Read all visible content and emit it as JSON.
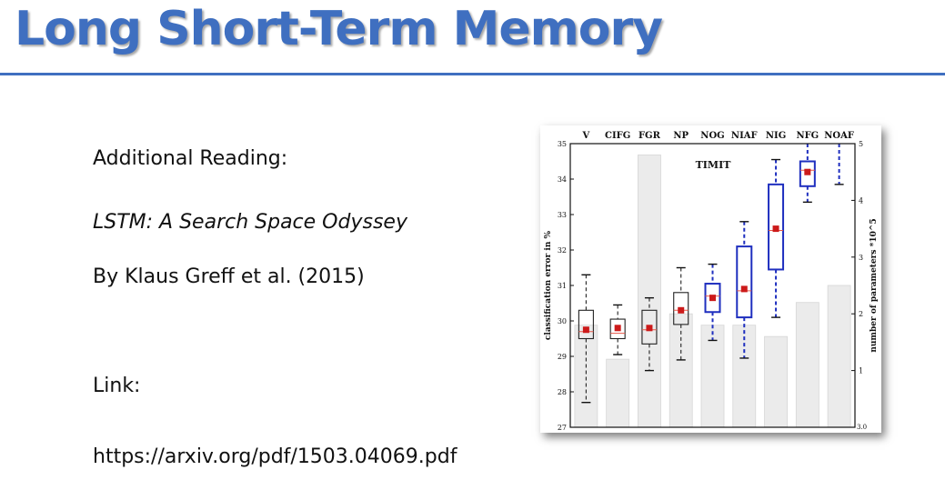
{
  "slide": {
    "title": "Long Short-Term Memory",
    "heading": "Additional Reading:",
    "paper_title": "LSTM: A Search Space Odyssey",
    "authors": "By Klaus Greff et al. (2015)",
    "link_label": "Link:",
    "url": "https://arxiv.org/pdf/1503.04069.pdf",
    "accent_color": "#3f6fc0"
  },
  "chart_data": {
    "type": "box",
    "title": "TIMIT",
    "ylabel": "classification error in %",
    "y2label": "number of parameters *10^5",
    "ylim": [
      27,
      35
    ],
    "y2lim": [
      0,
      5
    ],
    "yticks": [
      "27",
      "28",
      "29",
      "30",
      "31",
      "32",
      "33",
      "34",
      "35"
    ],
    "y2ticks": [
      "1",
      "2",
      "3",
      "4",
      "5"
    ],
    "y2_bottom_tick": "3.0",
    "categories": [
      "V",
      "CIFG",
      "FGR",
      "NP",
      "NOG",
      "NIAF",
      "NIG",
      "NFG",
      "NOAF"
    ],
    "boxes": [
      {
        "q1": 29.5,
        "median": 29.7,
        "q3": 30.3,
        "low": 27.7,
        "high": 31.3,
        "mean": 29.75,
        "highlight": false
      },
      {
        "q1": 29.5,
        "median": 29.65,
        "q3": 30.05,
        "low": 29.05,
        "high": 30.45,
        "mean": 29.8,
        "highlight": false
      },
      {
        "q1": 29.35,
        "median": 29.75,
        "q3": 30.3,
        "low": 28.6,
        "high": 30.65,
        "mean": 29.8,
        "highlight": false
      },
      {
        "q1": 29.9,
        "median": 30.3,
        "q3": 30.8,
        "low": 28.9,
        "high": 31.5,
        "mean": 30.3,
        "highlight": false
      },
      {
        "q1": 30.25,
        "median": 30.7,
        "q3": 31.05,
        "low": 29.45,
        "high": 31.6,
        "mean": 30.65,
        "highlight": true
      },
      {
        "q1": 30.1,
        "median": 30.85,
        "q3": 32.1,
        "low": 28.95,
        "high": 32.8,
        "mean": 30.9,
        "highlight": true
      },
      {
        "q1": 31.45,
        "median": 32.55,
        "q3": 33.85,
        "low": 30.1,
        "high": 34.55,
        "mean": 32.6,
        "highlight": true
      },
      {
        "q1": 33.8,
        "median": 34.25,
        "q3": 34.5,
        "low": 33.35,
        "high": 35.0,
        "mean": 34.2,
        "highlight": true
      },
      {
        "q1": null,
        "median": null,
        "q3": null,
        "low": 33.85,
        "high": 35.0,
        "mean": null,
        "highlight": true
      }
    ],
    "parameters": [
      1.8,
      1.2,
      4.8,
      2.0,
      1.8,
      1.8,
      1.6,
      2.2,
      2.5
    ],
    "colors": {
      "box": "#222222",
      "highlight_box": "#1f2fbf",
      "mean": "#cc1a1a",
      "median": "#e8584a",
      "bar_fill": "#ebebeb",
      "bar_stroke": "#d6d6d6"
    }
  }
}
